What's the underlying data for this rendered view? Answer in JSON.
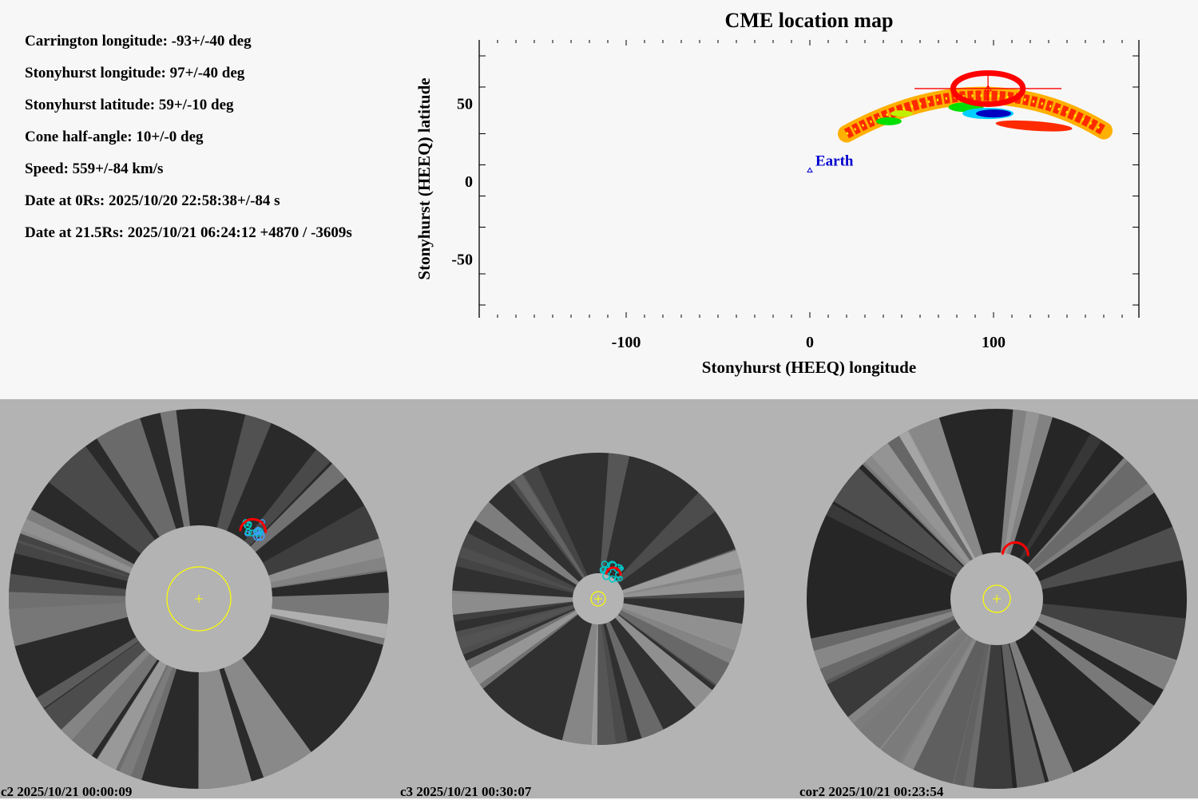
{
  "info": {
    "lines": [
      "Carrington longitude: -93+/-40 deg",
      "Stonyhurst longitude: 97+/-40 deg",
      "Stonyhurst latitude: 59+/-10 deg",
      "Cone half-angle: 10+/-0 deg",
      "Speed: 559+/-84 km/s",
      "Date at 0Rs: 2025/10/20 22:58:38+/-84 s",
      "Date at 21.5Rs: 2025/10/21 06:24:12 +4870 / -3609s"
    ]
  },
  "chart_data": {
    "type": "scatter",
    "title": "CME location map",
    "xlabel": "Stonyhurst (HEEQ) longitude",
    "ylabel": "Stonyhurst (HEEQ) latitude",
    "xlim": [
      -180,
      180
    ],
    "ylim": [
      -90,
      90
    ],
    "xticks": [
      -100,
      0,
      100
    ],
    "xtick_labels": [
      "-100",
      "0",
      "100"
    ],
    "yticks": [
      -50,
      0,
      50
    ],
    "ytick_labels": [
      "-50",
      "0",
      "50"
    ],
    "x_minor_step": 10,
    "grid": false,
    "points": [
      {
        "name": "Earth",
        "lon": 0,
        "lat": 7,
        "color": "#0000d0",
        "marker": "triangle"
      },
      {
        "name": "CME",
        "lon": 97,
        "lat": 59,
        "lon_err": 40,
        "lat_err": 10,
        "color": "#ff0000",
        "marker": "triangle"
      }
    ],
    "cme_ellipse": {
      "center_lon": 97,
      "center_lat": 59,
      "half_width_lon": 19,
      "half_height_lat": 10,
      "color": "#ff0000"
    },
    "probability_band": {
      "description": "probability density arc of possible CME source locations",
      "lon_range": [
        20,
        162
      ],
      "lat_range": [
        28,
        63
      ],
      "colors": [
        "#ff2a00",
        "#ffb000",
        "#ffff00",
        "#00e000",
        "#00d0ff",
        "#0000c0"
      ]
    }
  },
  "coronagraphs": [
    {
      "instrument": "c2",
      "caption": "c2 2025/10/21 00:00:09",
      "annotation_colors": [
        "#ff0000",
        "#00c8c8",
        "#40a0ff"
      ]
    },
    {
      "instrument": "c3",
      "caption": "c3 2025/10/21 00:30:07",
      "annotation_colors": [
        "#ff0000",
        "#00c8c8"
      ]
    },
    {
      "instrument": "cor2",
      "caption": "cor2 2025/10/21 00:23:54",
      "annotation_colors": [
        "#ff0000"
      ]
    }
  ],
  "colors": {
    "sun_circle": "#ffff00",
    "occulter": "#b3b3b3",
    "background": "#f7f7f7"
  }
}
